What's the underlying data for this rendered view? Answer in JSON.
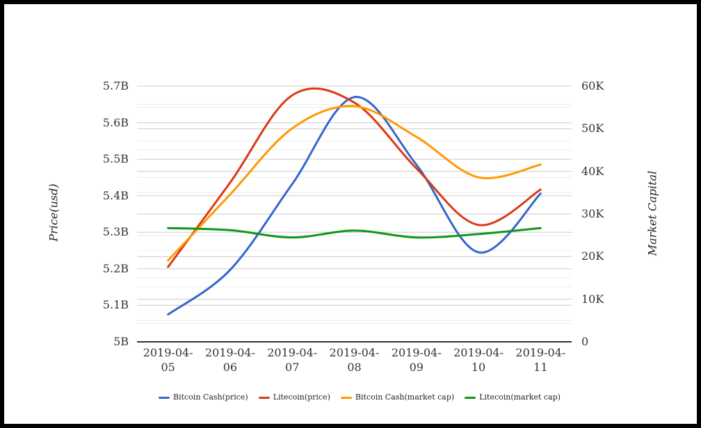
{
  "chart_data": {
    "type": "line",
    "curve": "smooth",
    "title": "",
    "x_categories": [
      "2019-04-05",
      "2019-04-06",
      "2019-04-07",
      "2019-04-08",
      "2019-04-09",
      "2019-04-10",
      "2019-04-11"
    ],
    "left_axis": {
      "label": "Price(usd)",
      "unit": "B",
      "min": 5.0,
      "max": 5.7,
      "ticks": [
        "5B",
        "5.1B",
        "5.2B",
        "5.3B",
        "5.4B",
        "5.5B",
        "5.6B",
        "5.7B"
      ]
    },
    "right_axis": {
      "label": "Market Capital",
      "unit": "K",
      "min": 0,
      "max": 60,
      "ticks": [
        "0",
        "10K",
        "20K",
        "30K",
        "40K",
        "50K",
        "60K"
      ]
    },
    "series": [
      {
        "name": "Bitcoin Cash(price)",
        "axis": "left",
        "color": "#3366cc",
        "values": [
          5.075,
          5.197,
          5.432,
          5.67,
          5.485,
          5.245,
          5.406
        ]
      },
      {
        "name": "Litecoin(price)",
        "axis": "left",
        "color": "#dc3912",
        "values": [
          5.205,
          5.436,
          5.675,
          5.655,
          5.475,
          5.32,
          5.417
        ]
      },
      {
        "name": "Bitcoin Cash(market cap)",
        "axis": "right",
        "color": "#ff9900",
        "values": [
          19.1,
          34.6,
          50.1,
          55.3,
          48.1,
          38.6,
          41.6
        ]
      },
      {
        "name": "Litecoin(market cap)",
        "axis": "right",
        "color": "#109618",
        "values": [
          26.7,
          26.2,
          24.5,
          26.1,
          24.5,
          25.3,
          26.7
        ]
      }
    ],
    "legend": {
      "position": "bottom",
      "items": [
        "Bitcoin Cash(price)",
        "Litecoin(price)",
        "Bitcoin Cash(market cap)",
        "Litecoin(market cap)"
      ]
    },
    "style": {
      "background": "#ffffff",
      "frame_border": "#000000",
      "grid_major": "#cccccc",
      "grid_minor": "#ececec",
      "axis_line": "#333333",
      "text_color": "#333333"
    }
  }
}
